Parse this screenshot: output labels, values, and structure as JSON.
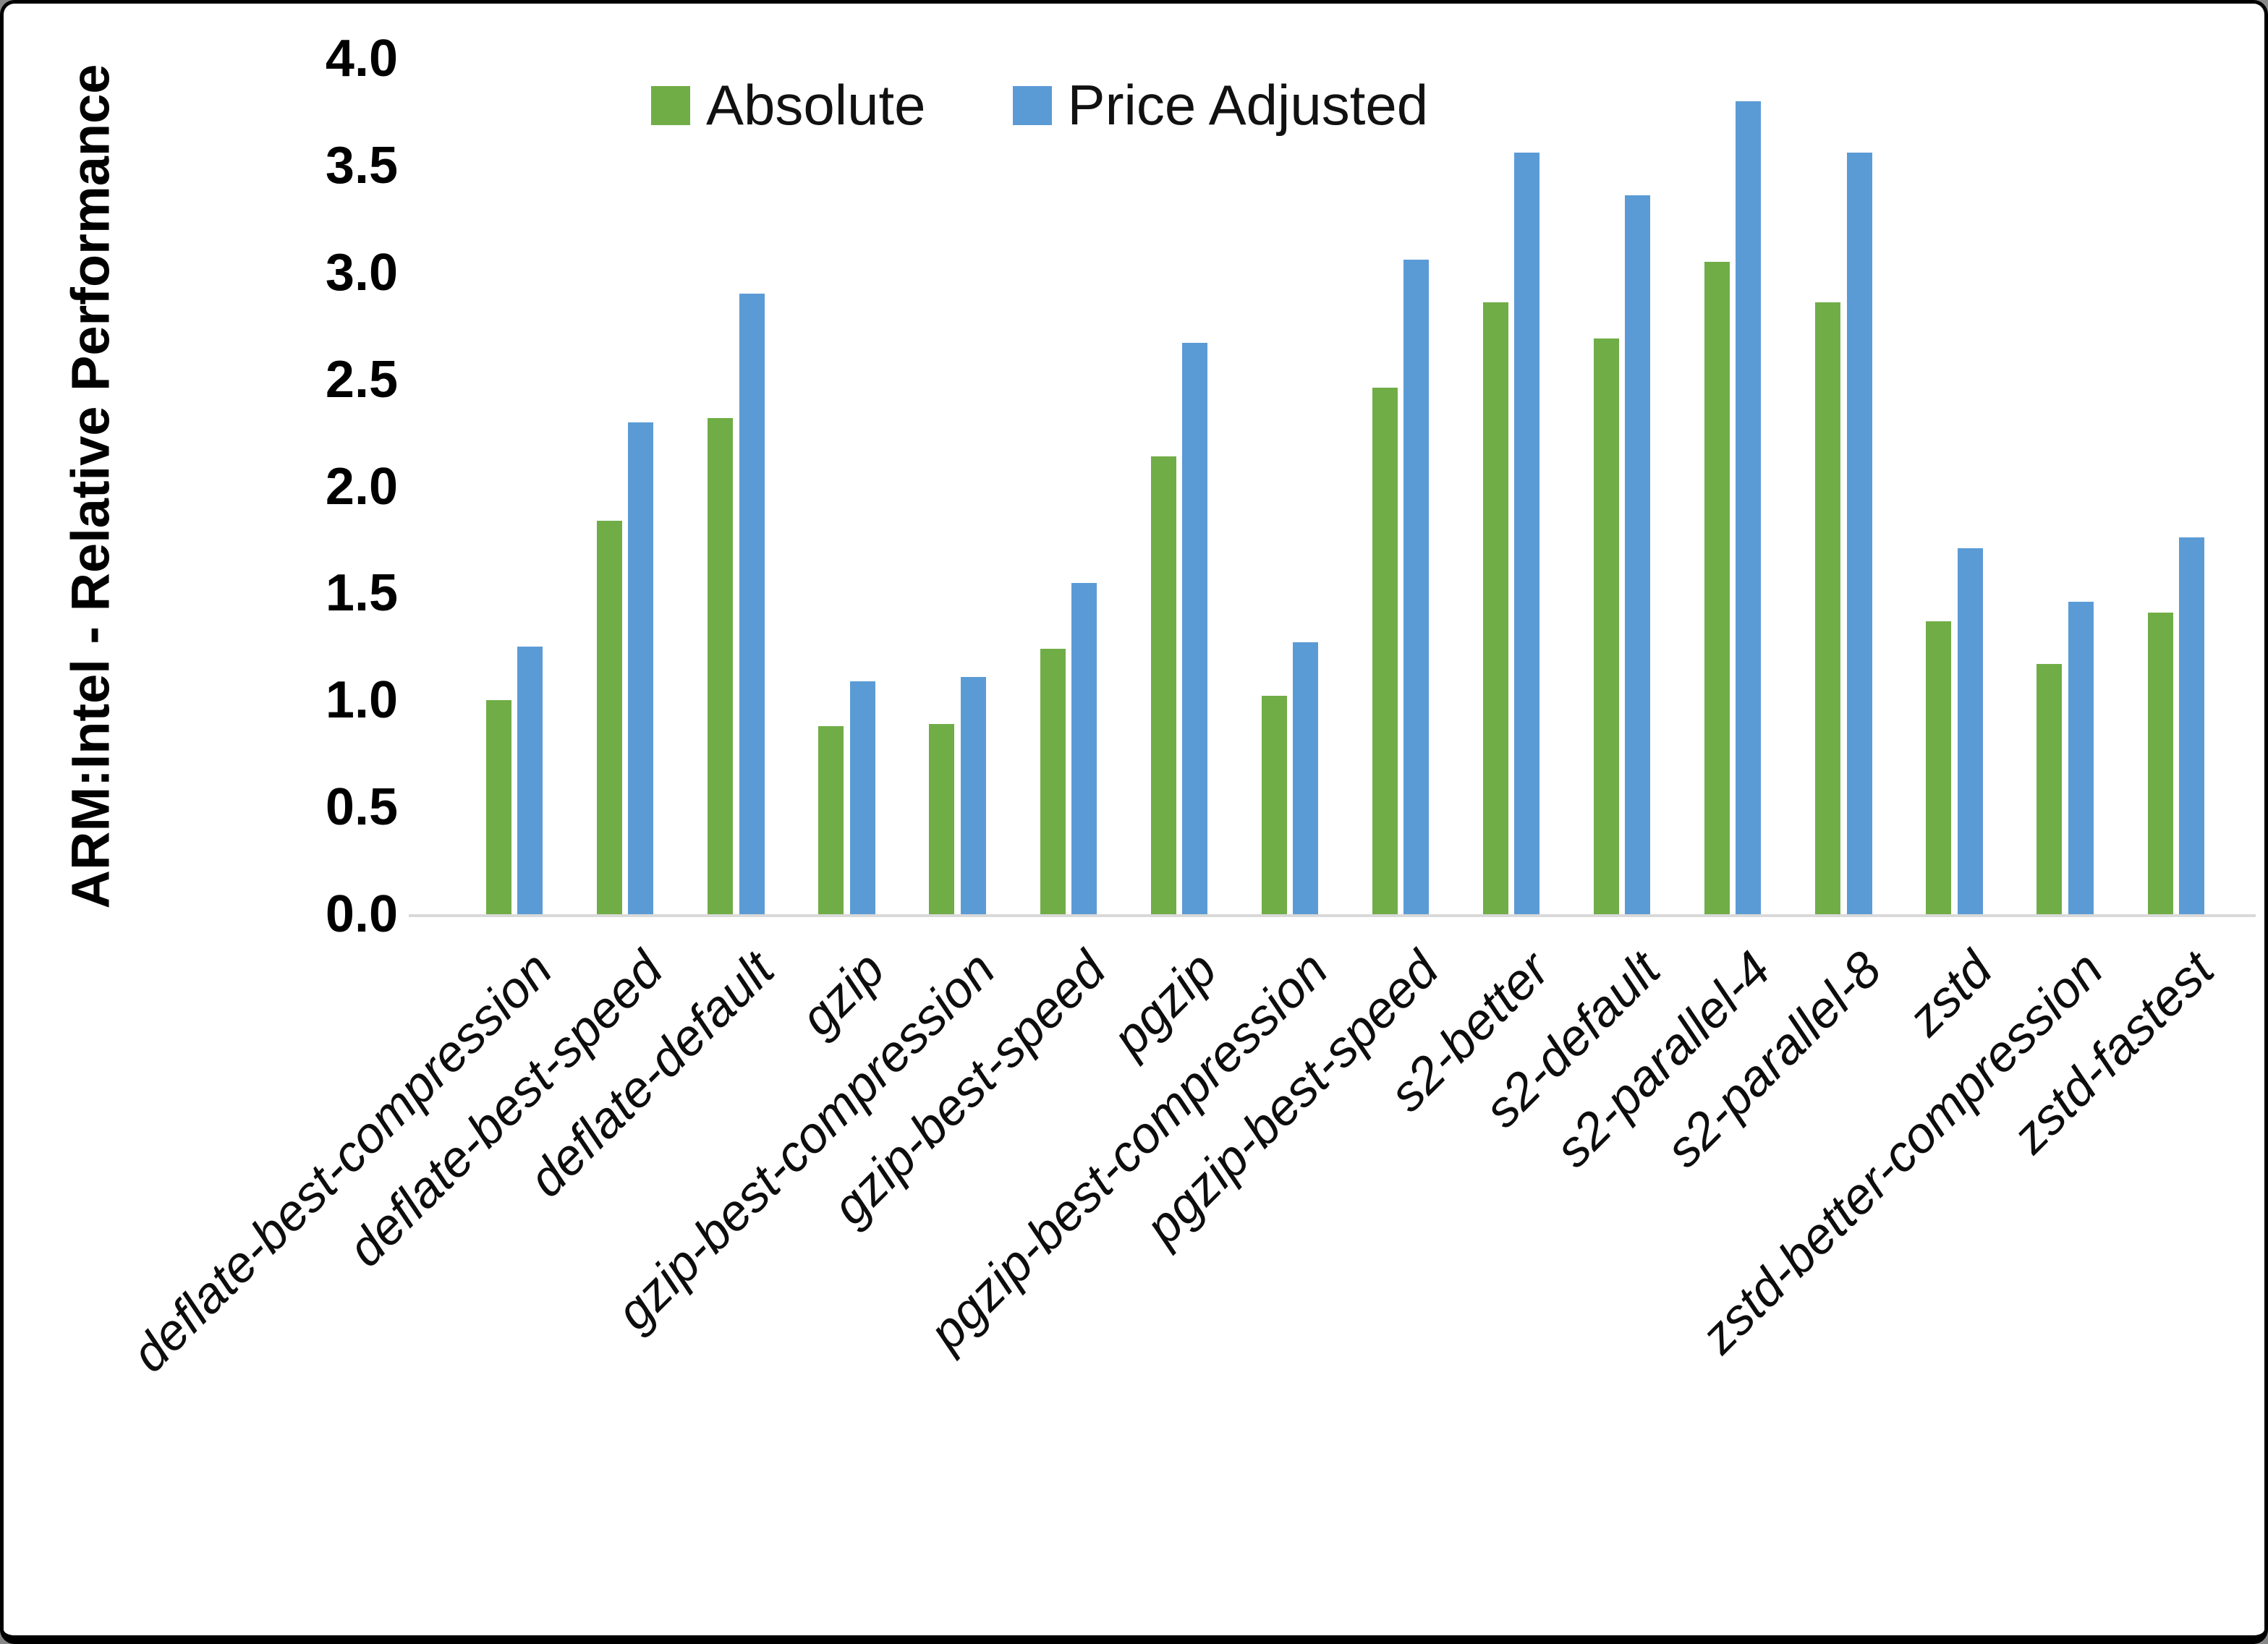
{
  "chart_data": {
    "type": "bar",
    "title": "",
    "xlabel": "",
    "ylabel": "ARM:Intel - Relative Performance",
    "ylim": [
      0.0,
      4.0
    ],
    "ytick_step": 0.5,
    "yticks": [
      "0.0",
      "0.5",
      "1.0",
      "1.5",
      "2.0",
      "2.5",
      "3.0",
      "3.5",
      "4.0"
    ],
    "grid": false,
    "legend_position": "top-center",
    "categories": [
      "deflate-best-compression",
      "deflate-best-speed",
      "deflate-default",
      "gzip",
      "gzip-best-compression",
      "gzip-best-speed",
      "pgzip",
      "pgzip-best-compression",
      "pgzip-best-speed",
      "s2-better",
      "s2-default",
      "s2-parallel-4",
      "s2-parallel-8",
      "zstd",
      "zstd-better-compression",
      "zstd-fastest"
    ],
    "series": [
      {
        "name": "Absolute",
        "color": "#70AD47",
        "values": [
          1.0,
          1.84,
          2.32,
          0.88,
          0.89,
          1.24,
          2.14,
          1.02,
          2.46,
          2.86,
          2.69,
          3.05,
          2.86,
          1.37,
          1.17,
          1.41
        ]
      },
      {
        "name": "Price Adjusted",
        "color": "#5B9BD5",
        "values": [
          1.25,
          2.3,
          2.9,
          1.09,
          1.11,
          1.55,
          2.67,
          1.27,
          3.06,
          3.56,
          3.36,
          3.8,
          3.56,
          1.71,
          1.46,
          1.76
        ]
      }
    ]
  }
}
